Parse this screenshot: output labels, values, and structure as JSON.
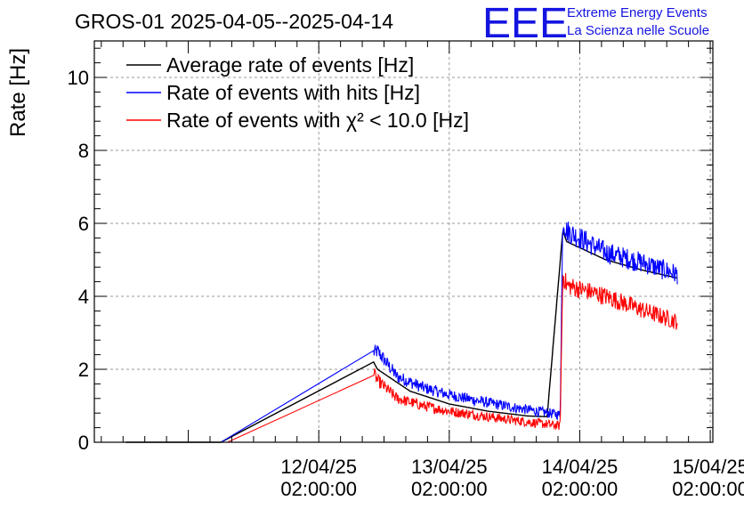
{
  "logo": {
    "letters": "EEE",
    "line1": "Extreme Energy Events",
    "line2": "La Scienza nelle Scuole",
    "color": "#1414e0"
  },
  "chart_data": {
    "type": "line",
    "title": "GROS-01 2025-04-05--2025-04-14",
    "ylabel": "Rate [Hz]",
    "xlabel": "",
    "ylim": [
      0,
      11
    ],
    "y_ticks": [
      0,
      2,
      4,
      6,
      8,
      10
    ],
    "x_ticks": [
      {
        "date": "12/04/25",
        "time": "02:00:00",
        "t": 1.0
      },
      {
        "date": "13/04/25",
        "time": "02:00:00",
        "t": 2.0
      },
      {
        "date": "14/04/25",
        "time": "02:00:00",
        "t": 3.0
      },
      {
        "date": "15/04/25",
        "time": "02:00:00",
        "t": 4.0
      }
    ],
    "x_unit": "days after 11/04/25 02:00:00",
    "xlim": [
      -0.72,
      4.02
    ],
    "grid": true,
    "legend_placement": "top-left",
    "series": [
      {
        "name": "Average rate of events [Hz]",
        "color": "#000000",
        "points": [
          [
            -0.48,
            0.0
          ],
          [
            0.25,
            0.0
          ],
          [
            1.42,
            2.2
          ],
          [
            1.45,
            2.0
          ],
          [
            1.7,
            1.4
          ],
          [
            2.0,
            1.05
          ],
          [
            2.3,
            0.85
          ],
          [
            2.6,
            0.72
          ],
          [
            2.75,
            0.7
          ],
          [
            2.87,
            5.8
          ],
          [
            2.9,
            5.5
          ],
          [
            3.2,
            5.0
          ],
          [
            3.5,
            4.7
          ],
          [
            3.75,
            4.5
          ]
        ]
      },
      {
        "name": "Rate of events with hits [Hz]",
        "color": "#0000ff",
        "points": [
          [
            -0.48,
            0.0
          ],
          [
            0.25,
            0.0
          ],
          [
            1.42,
            2.45
          ],
          [
            1.45,
            2.5
          ],
          [
            1.6,
            1.8
          ],
          [
            1.8,
            1.5
          ],
          [
            2.0,
            1.3
          ],
          [
            2.2,
            1.15
          ],
          [
            2.5,
            0.95
          ],
          [
            2.85,
            0.75
          ],
          [
            2.87,
            6.1
          ],
          [
            2.9,
            5.8
          ],
          [
            3.2,
            5.2
          ],
          [
            3.5,
            4.9
          ],
          [
            3.75,
            4.6
          ]
        ]
      },
      {
        "name": "Rate of events with χ² < 10.0 [Hz]",
        "color": "#ff0000",
        "points": [
          [
            -0.48,
            0.0
          ],
          [
            0.3,
            0.0
          ],
          [
            1.42,
            1.9
          ],
          [
            1.45,
            1.7
          ],
          [
            1.6,
            1.2
          ],
          [
            1.8,
            1.0
          ],
          [
            2.0,
            0.85
          ],
          [
            2.2,
            0.75
          ],
          [
            2.5,
            0.6
          ],
          [
            2.85,
            0.45
          ],
          [
            2.87,
            4.6
          ],
          [
            2.9,
            4.3
          ],
          [
            3.2,
            4.0
          ],
          [
            3.5,
            3.6
          ],
          [
            3.75,
            3.3
          ]
        ]
      }
    ]
  }
}
